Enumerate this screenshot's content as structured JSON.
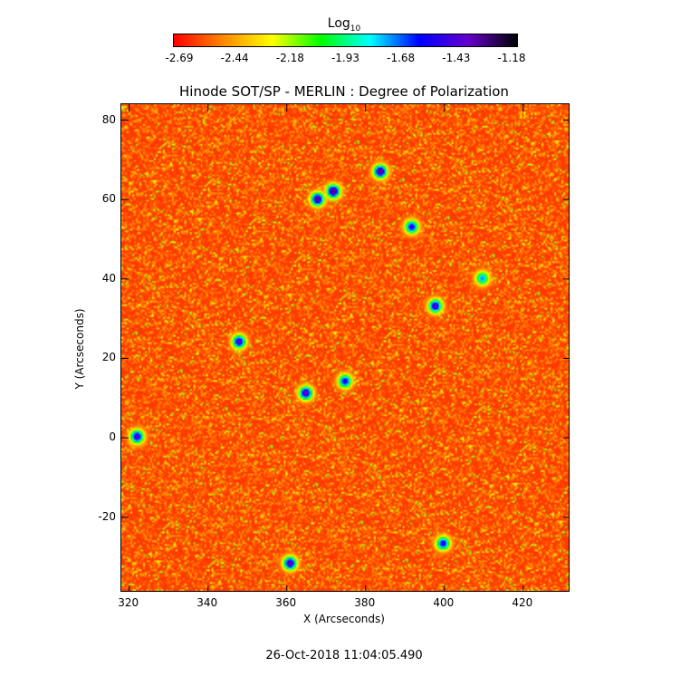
{
  "colorbar": {
    "title": "Log",
    "title_sub": "10",
    "ticks": [
      "-2.69",
      "-2.44",
      "-2.18",
      "-1.93",
      "-1.68",
      "-1.43",
      "-1.18"
    ],
    "colors": [
      "#ff0000",
      "#ff8800",
      "#ffff00",
      "#00ff00",
      "#00ffff",
      "#0000ff",
      "#6600cc",
      "#000000"
    ]
  },
  "chart_data": {
    "type": "heatmap",
    "title": "Hinode SOT/SP - MERLIN : Degree of Polarization",
    "xlabel": "X (Arcseconds)",
    "ylabel": "Y (Arcseconds)",
    "xlim": [
      318,
      432
    ],
    "ylim": [
      -39,
      84
    ],
    "xticks": [
      320,
      340,
      360,
      380,
      400,
      420
    ],
    "yticks": [
      -20,
      0,
      20,
      40,
      60,
      80
    ],
    "value_range": [
      -2.69,
      -1.18
    ],
    "background_level": -2.6,
    "features": [
      {
        "x": 368,
        "y": 60,
        "value": -1.3
      },
      {
        "x": 372,
        "y": 62,
        "value": -1.25
      },
      {
        "x": 384,
        "y": 67,
        "value": -1.3
      },
      {
        "x": 392,
        "y": 53,
        "value": -1.5
      },
      {
        "x": 398,
        "y": 33,
        "value": -1.4
      },
      {
        "x": 348,
        "y": 24,
        "value": -1.4
      },
      {
        "x": 365,
        "y": 11,
        "value": -1.35
      },
      {
        "x": 375,
        "y": 14,
        "value": -1.5
      },
      {
        "x": 322,
        "y": 0,
        "value": -1.4
      },
      {
        "x": 361,
        "y": -32,
        "value": -1.35
      },
      {
        "x": 400,
        "y": -27,
        "value": -1.5
      },
      {
        "x": 410,
        "y": 40,
        "value": -1.7
      }
    ]
  },
  "timestamp": "26-Oct-2018 11:04:05.490"
}
